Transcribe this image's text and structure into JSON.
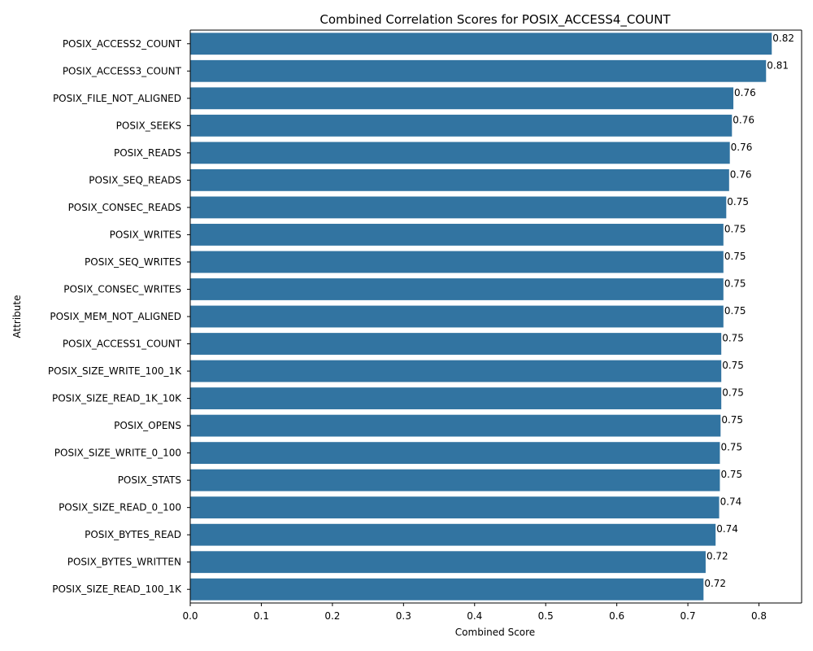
{
  "chart_data": {
    "type": "bar",
    "orientation": "horizontal",
    "title": "Combined Correlation Scores for POSIX_ACCESS4_COUNT",
    "xlabel": "Combined Score",
    "ylabel": "Attribute",
    "xlim": [
      0,
      0.86
    ],
    "xticks": [
      "0.0",
      "0.1",
      "0.2",
      "0.3",
      "0.4",
      "0.5",
      "0.6",
      "0.7",
      "0.8"
    ],
    "grid": false,
    "bar_color": "#3274a1",
    "categories": [
      "POSIX_ACCESS2_COUNT",
      "POSIX_ACCESS3_COUNT",
      "POSIX_FILE_NOT_ALIGNED",
      "POSIX_SEEKS",
      "POSIX_READS",
      "POSIX_SEQ_READS",
      "POSIX_CONSEC_READS",
      "POSIX_WRITES",
      "POSIX_SEQ_WRITES",
      "POSIX_CONSEC_WRITES",
      "POSIX_MEM_NOT_ALIGNED",
      "POSIX_ACCESS1_COUNT",
      "POSIX_SIZE_WRITE_100_1K",
      "POSIX_SIZE_READ_1K_10K",
      "POSIX_OPENS",
      "POSIX_SIZE_WRITE_0_100",
      "POSIX_STATS",
      "POSIX_SIZE_READ_0_100",
      "POSIX_BYTES_READ",
      "POSIX_BYTES_WRITTEN",
      "POSIX_SIZE_READ_100_1K"
    ],
    "values": [
      0.818,
      0.81,
      0.764,
      0.762,
      0.759,
      0.758,
      0.754,
      0.75,
      0.75,
      0.75,
      0.75,
      0.747,
      0.747,
      0.747,
      0.746,
      0.745,
      0.745,
      0.744,
      0.739,
      0.725,
      0.722
    ],
    "data_labels": [
      "0.82",
      "0.81",
      "0.76",
      "0.76",
      "0.76",
      "0.76",
      "0.75",
      "0.75",
      "0.75",
      "0.75",
      "0.75",
      "0.75",
      "0.75",
      "0.75",
      "0.75",
      "0.75",
      "0.75",
      "0.74",
      "0.74",
      "0.72",
      "0.72"
    ]
  }
}
